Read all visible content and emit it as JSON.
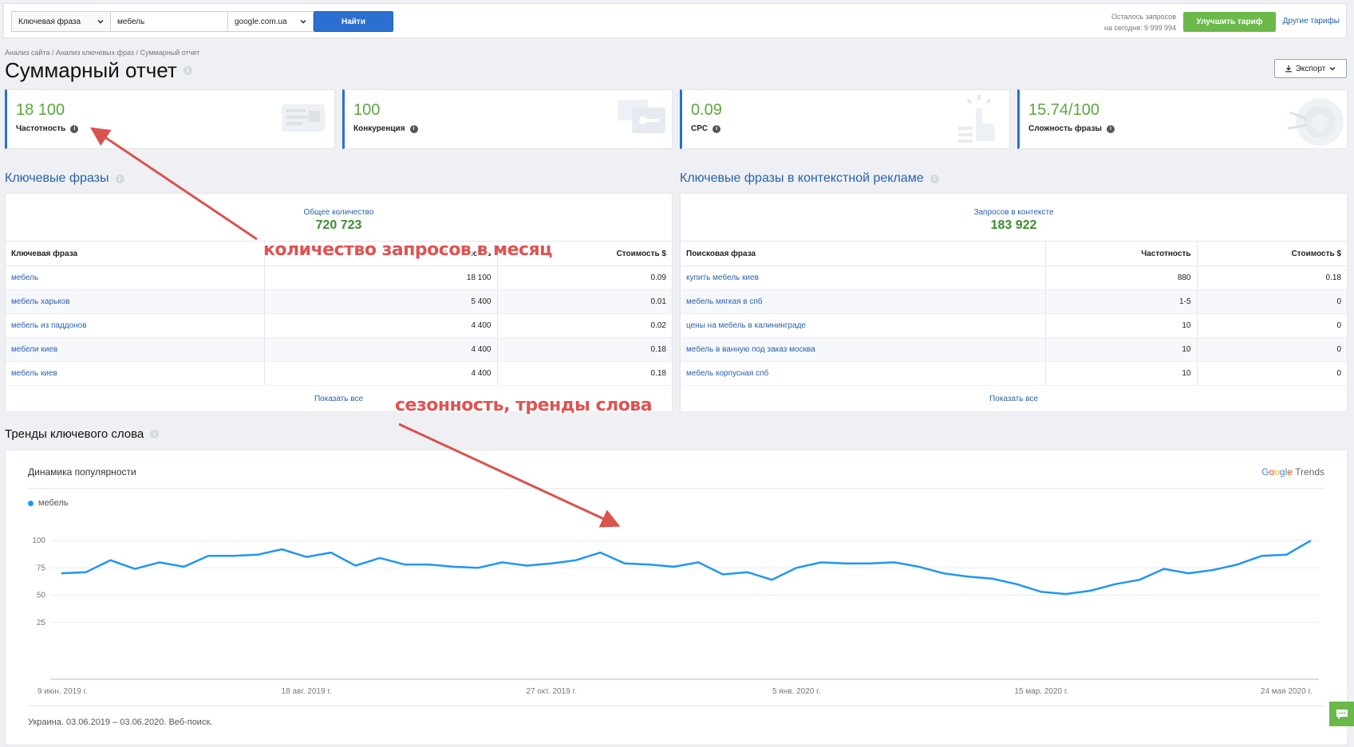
{
  "search": {
    "mode": "Ключевая фраза",
    "query": "мебель",
    "engine": "google.com.ua",
    "find_label": "Найти"
  },
  "quota": {
    "line1": "Осталось запросов",
    "line2": "на сегодня: 9 999 994"
  },
  "upgrade_label": "Улучшить тариф",
  "other_plans_label": "Другие тарифы",
  "breadcrumb": "Анализ сайта / Анализ ключевых фраз / Суммарный отчет",
  "page_title": "Суммарный отчет",
  "export_label": "Экспорт",
  "metrics": [
    {
      "value": "18 100",
      "label": "Частотность"
    },
    {
      "value": "100",
      "label": "Конкуренция"
    },
    {
      "value": "0.09",
      "label": "CPC"
    },
    {
      "value": "15.74/100",
      "label": "Сложность фразы"
    }
  ],
  "keywords": {
    "title": "Ключевые фразы",
    "summary_label": "Общее количество",
    "summary_value": "720 723",
    "columns": [
      "Ключевая фраза",
      "Частотность",
      "Стоимость $"
    ],
    "rows": [
      [
        "мебель",
        "18 100",
        "0.09"
      ],
      [
        "мебель харьков",
        "5 400",
        "0.01"
      ],
      [
        "мебель из паддонов",
        "4 400",
        "0.02"
      ],
      [
        "мебели киев",
        "4 400",
        "0.18"
      ],
      [
        "мебель киев",
        "4 400",
        "0.18"
      ]
    ],
    "show_all": "Показать все"
  },
  "context": {
    "title": "Ключевые фразы в контекстной рекламе",
    "summary_label": "Запросов в контексте",
    "summary_value": "183 922",
    "columns": [
      "Поисковая фраза",
      "Частотность",
      "Стоимость $"
    ],
    "rows": [
      [
        "купить мебель киев",
        "880",
        "0.18"
      ],
      [
        "мебель мягкая в спб",
        "1-5",
        "0"
      ],
      [
        "цены на мебель в калининграде",
        "10",
        "0"
      ],
      [
        "мебель в ванную под заказ москва",
        "10",
        "0"
      ],
      [
        "мебель корпусная спб",
        "10",
        "0"
      ]
    ],
    "show_all": "Показать все"
  },
  "trends": {
    "title": "Тренды ключевого слова",
    "panel_title": "Динамика популярности",
    "brand": "Google Trends",
    "footer": "Украина. 03.06.2019 – 03.06.2020. Веб-поиск.",
    "series_color": "#2196f3"
  },
  "chart_data": {
    "type": "line",
    "series": [
      {
        "name": "мебель",
        "values": [
          70,
          71,
          82,
          74,
          80,
          76,
          86,
          86,
          87,
          92,
          85,
          89,
          77,
          84,
          78,
          78,
          76,
          75,
          80,
          77,
          79,
          82,
          89,
          79,
          78,
          76,
          80,
          69,
          71,
          64,
          75,
          80,
          79,
          79,
          80,
          76,
          70,
          67,
          65,
          60,
          53,
          51,
          54,
          60,
          64,
          74,
          70,
          73,
          78,
          86,
          87,
          100
        ]
      }
    ],
    "x_tick_labels": [
      "9 июн. 2019 г.",
      "18 авг. 2019 г.",
      "27 окт. 2019 г.",
      "5 янв. 2020 г.",
      "15 мар. 2020 г.",
      "24 мая 2020 г."
    ],
    "y_tick_labels": [
      "100",
      "75",
      "50",
      "25"
    ],
    "ylim": [
      0,
      100
    ],
    "grid": true,
    "legend_position": "top-left"
  },
  "annotations": {
    "freq": "количество запросов в месяц",
    "trend": "сезонность, тренды слова",
    "color": "#d9534f"
  }
}
